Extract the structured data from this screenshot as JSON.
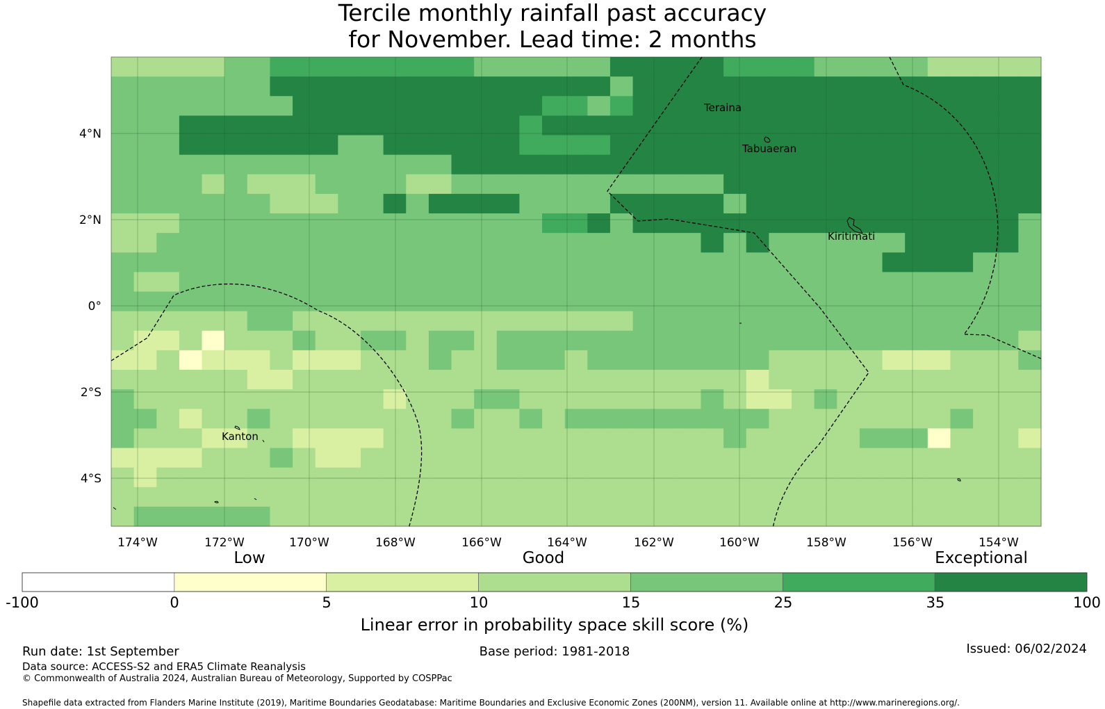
{
  "title": {
    "line1": "Tercile monthly rainfall past accuracy",
    "line2": "for November. Lead time: 2 months"
  },
  "map": {
    "lon_ticks": [
      "174°W",
      "172°W",
      "170°W",
      "168°W",
      "166°W",
      "164°W",
      "162°W",
      "160°W",
      "158°W",
      "156°W",
      "154°W"
    ],
    "lat_ticks": [
      "4°N",
      "2°N",
      "0°",
      "2°S",
      "4°S"
    ],
    "places": [
      "Teraina",
      "Tabuaeran",
      "Kiritimati",
      "Kanton"
    ],
    "skill_grid": [
      "33333445555555554444446666655554444433333",
      "44444446666666666666664666666666666666666",
      "44444444666666666665545666666666666666666",
      "44466666666666666656666666666666666666666",
      "44466666664466666655556666666666666666666",
      "44444444444444466666666666666666666666666",
      "44443433344443344444444444466666666666666",
      "44444443334464666644446666646666666666666",
      "33344444444444444445564666666666666666664",
      "33444444444444444444444444646444444666664",
      "44444444444444444444444444444444446666444",
      "43344444444444444444444444444444444444444",
      "44444444444444444444444444444444444444444",
      "33333344333333333333333444444444444444444",
      "32231333433443443444444444444444444444443",
      "22312223222333433444344444444333332223334",
      "33333322333333333333333333332333333333333",
      "43333333333323334433333333432234333333333",
      "44323343333333343343444444444333333334333",
      "43332233222233333333333333343333344413332",
      "22223334322333333333333333333333333333333",
      "32333333333333333333333333333333333333333",
      "33333333333333333333333333333333333333333",
      "34444443333333333333333333333333333333333"
    ]
  },
  "colorbar": {
    "category_labels": [
      "Low",
      "Good",
      "Exceptional"
    ],
    "bins": [
      {
        "from": "-100",
        "to": "0",
        "color": "#ffffff"
      },
      {
        "from": "0",
        "to": "5",
        "color": "#ffffcc"
      },
      {
        "from": "5",
        "to": "10",
        "color": "#d9f0a3"
      },
      {
        "from": "10",
        "to": "15",
        "color": "#addd8e"
      },
      {
        "from": "15",
        "to": "25",
        "color": "#78c679"
      },
      {
        "from": "25",
        "to": "35",
        "color": "#41ab5d"
      },
      {
        "from": "35",
        "to": "100",
        "color": "#238443"
      }
    ],
    "tick_labels": [
      "-100",
      "0",
      "5",
      "10",
      "15",
      "25",
      "35",
      "100"
    ],
    "axis_label": "Linear error in probability space skill score (%)"
  },
  "footer": {
    "run_date": "Run date: 1st September",
    "base_period": "Base period: 1981-2018",
    "issued": "Issued: 06/02/2024",
    "data_source": "Data source: ACCESS-S2 and ERA5 Climate Reanalysis",
    "copyright": "© Commonwealth of Australia 2024, Australian Bureau of Meteorology, Supported by COSPPac",
    "shapefile_credit": "Shapefile data extracted from Flanders Marine Institute (2019), Maritime Boundaries Geodatabase: Maritime Boundaries and Exclusive Economic Zones (200NM), version 11. Available online at http://www.marineregions.org/."
  }
}
